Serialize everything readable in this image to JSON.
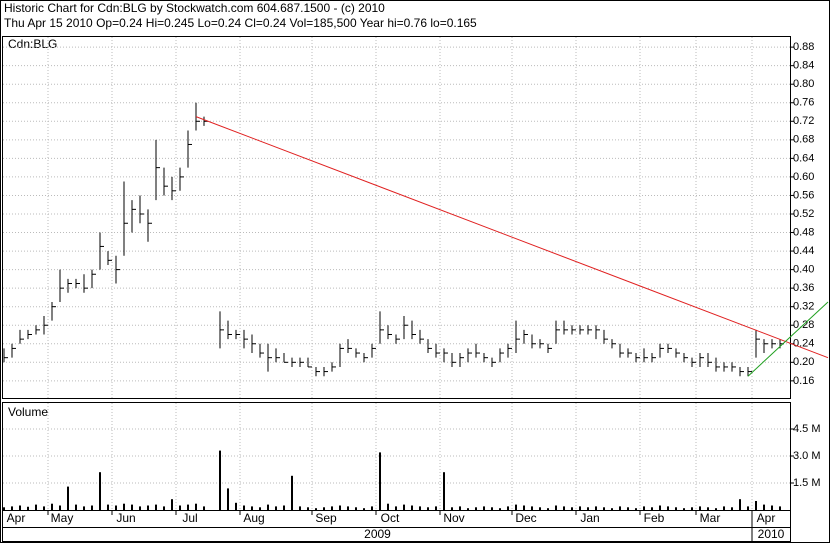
{
  "chart_data": [
    {
      "type": "ohlc",
      "title": "Historic Chart for Cdn:BLG by Stockwatch.com 604.687.1500 - (c) 2010",
      "subtitle": "Thu Apr 15 2010  Op=0.24  Hi=0.245  Lo=0.24  Cl=0.24  Vol=185,500  Year hi=0.76  lo=0.165",
      "symbol": "Cdn:BLG",
      "color": "#000000",
      "categories": [
        "Apr",
        null,
        null,
        null,
        null,
        null,
        "May",
        null,
        null,
        null,
        null,
        null,
        null,
        null,
        "Jun",
        null,
        null,
        null,
        null,
        null,
        null,
        null,
        "Jul",
        null,
        null,
        null,
        null,
        null,
        null,
        null,
        "Aug",
        null,
        null,
        null,
        null,
        null,
        null,
        null,
        null,
        "Sep",
        null,
        null,
        null,
        null,
        null,
        null,
        null,
        "Oct",
        null,
        null,
        null,
        null,
        null,
        null,
        null,
        "Nov",
        null,
        null,
        null,
        null,
        null,
        null,
        null,
        null,
        "Dec",
        null,
        null,
        null,
        null,
        null,
        null,
        null,
        "Jan",
        null,
        null,
        null,
        null,
        null,
        null,
        null,
        "Feb",
        null,
        null,
        null,
        null,
        null,
        null,
        "Mar",
        null,
        null,
        null,
        null,
        null,
        null,
        "Apr",
        null,
        null,
        null
      ],
      "high": [
        0.23,
        0.24,
        0.27,
        0.27,
        0.28,
        0.3,
        0.33,
        0.4,
        0.38,
        0.38,
        0.39,
        0.4,
        0.48,
        0.44,
        0.43,
        0.59,
        0.55,
        0.56,
        0.53,
        0.68,
        0.62,
        0.6,
        0.62,
        0.7,
        0.76,
        0.73,
        null,
        0.31,
        0.29,
        0.27,
        0.27,
        0.26,
        0.24,
        0.24,
        0.23,
        0.22,
        0.21,
        0.21,
        0.21,
        0.19,
        0.19,
        0.2,
        0.24,
        0.25,
        0.23,
        0.22,
        0.24,
        0.31,
        0.28,
        0.26,
        0.3,
        0.29,
        0.27,
        0.25,
        0.24,
        0.23,
        0.22,
        0.22,
        0.23,
        0.24,
        0.22,
        0.21,
        0.23,
        0.24,
        0.29,
        0.27,
        0.26,
        0.25,
        0.24,
        0.29,
        0.29,
        0.28,
        0.28,
        0.28,
        0.28,
        0.27,
        0.25,
        0.24,
        0.23,
        0.22,
        0.23,
        0.22,
        0.24,
        0.24,
        0.23,
        0.22,
        0.21,
        0.22,
        0.22,
        0.21,
        0.2,
        0.2,
        0.19,
        0.19,
        0.27,
        0.25,
        0.25,
        0.25
      ],
      "low": [
        0.2,
        0.21,
        0.24,
        0.25,
        0.26,
        0.26,
        0.29,
        0.33,
        0.35,
        0.36,
        0.35,
        0.36,
        0.4,
        0.41,
        0.37,
        0.43,
        0.48,
        0.5,
        0.46,
        0.55,
        0.56,
        0.55,
        0.57,
        0.62,
        0.7,
        0.71,
        null,
        0.23,
        0.25,
        0.25,
        0.23,
        0.22,
        0.21,
        0.18,
        0.2,
        0.2,
        0.19,
        0.19,
        0.19,
        0.17,
        0.17,
        0.18,
        0.19,
        0.22,
        0.21,
        0.2,
        0.21,
        0.24,
        0.25,
        0.24,
        0.25,
        0.25,
        0.24,
        0.22,
        0.21,
        0.2,
        0.19,
        0.19,
        0.2,
        0.21,
        0.2,
        0.19,
        0.2,
        0.21,
        0.22,
        0.24,
        0.23,
        0.23,
        0.22,
        0.24,
        0.26,
        0.26,
        0.26,
        0.26,
        0.25,
        0.24,
        0.23,
        0.21,
        0.21,
        0.2,
        0.2,
        0.2,
        0.21,
        0.22,
        0.21,
        0.2,
        0.19,
        0.19,
        0.19,
        0.18,
        0.18,
        0.18,
        0.17,
        0.17,
        0.21,
        0.22,
        0.23,
        0.23
      ],
      "close": [
        0.21,
        0.23,
        0.25,
        0.26,
        0.27,
        0.28,
        0.32,
        0.36,
        0.37,
        0.37,
        0.36,
        0.39,
        0.45,
        0.42,
        0.4,
        0.5,
        0.53,
        0.52,
        0.5,
        0.62,
        0.58,
        0.57,
        0.6,
        0.67,
        0.72,
        0.72,
        null,
        0.27,
        0.26,
        0.26,
        0.25,
        0.24,
        0.22,
        0.21,
        0.21,
        0.2,
        0.2,
        0.2,
        0.19,
        0.18,
        0.18,
        0.19,
        0.23,
        0.23,
        0.22,
        0.21,
        0.23,
        0.27,
        0.26,
        0.25,
        0.28,
        0.26,
        0.25,
        0.23,
        0.22,
        0.22,
        0.2,
        0.21,
        0.22,
        0.22,
        0.21,
        0.2,
        0.22,
        0.23,
        0.25,
        0.26,
        0.24,
        0.24,
        0.23,
        0.27,
        0.27,
        0.27,
        0.27,
        0.27,
        0.27,
        0.25,
        0.24,
        0.22,
        0.22,
        0.21,
        0.21,
        0.21,
        0.23,
        0.23,
        0.22,
        0.21,
        0.2,
        0.21,
        0.2,
        0.19,
        0.19,
        0.19,
        0.18,
        0.18,
        0.25,
        0.24,
        0.24,
        0.24
      ],
      "ylim": [
        0.123,
        0.904
      ],
      "yticks": [
        0.16,
        {
          "value": 0.2,
          "label": "0.20"
        },
        0.24,
        0.28,
        0.32,
        0.36,
        {
          "value": 0.4,
          "label": "0.40"
        },
        0.44,
        0.48,
        0.52,
        0.56,
        {
          "value": 0.6,
          "label": "0.60"
        },
        0.64,
        0.68,
        0.72,
        0.76,
        {
          "value": 0.8,
          "label": "0.80"
        },
        0.84,
        0.88
      ],
      "years": [
        "2009",
        "2010"
      ],
      "trendlines": [
        {
          "color": "#e02020",
          "start": [
            24,
            0.73
          ],
          "end": [
            103,
            0.21
          ]
        },
        {
          "color": "#20a020",
          "start": [
            93,
            0.17
          ],
          "end": [
            103,
            0.33
          ]
        }
      ],
      "grid": true
    },
    {
      "type": "bar",
      "title": "Volume",
      "color": "#000000",
      "values": [
        0.15,
        0.2,
        0.25,
        0.18,
        0.3,
        0.2,
        0.35,
        0.25,
        1.3,
        0.3,
        0.2,
        0.25,
        2.1,
        0.3,
        0.25,
        0.35,
        0.3,
        0.2,
        0.25,
        0.3,
        0.2,
        0.6,
        0.25,
        0.3,
        0.35,
        0.2,
        null,
        3.3,
        1.2,
        0.4,
        0.25,
        0.2,
        0.15,
        0.3,
        0.2,
        0.25,
        1.9,
        0.2,
        0.15,
        0.1,
        0.15,
        0.2,
        0.25,
        0.2,
        0.15,
        0.1,
        0.2,
        3.2,
        0.35,
        0.2,
        0.3,
        0.25,
        0.2,
        0.15,
        0.2,
        2.1,
        0.15,
        0.2,
        0.1,
        0.15,
        0.2,
        0.15,
        0.1,
        0.2,
        0.3,
        0.25,
        0.2,
        0.15,
        0.1,
        0.25,
        0.2,
        0.15,
        0.2,
        0.15,
        0.2,
        0.15,
        0.1,
        0.2,
        0.15,
        0.1,
        0.2,
        0.15,
        0.25,
        0.2,
        0.15,
        0.1,
        0.15,
        0.2,
        0.15,
        0.1,
        0.2,
        0.15,
        0.6,
        0.2,
        0.5,
        0.3,
        0.25,
        0.2
      ],
      "ylim": [
        0,
        6.0
      ],
      "yticks": [
        {
          "value": 1.5,
          "label": "1.5 M"
        },
        {
          "value": 3.0,
          "label": "3.0 M"
        },
        {
          "value": 4.5,
          "label": "4.5 M"
        }
      ],
      "grid": true
    }
  ]
}
